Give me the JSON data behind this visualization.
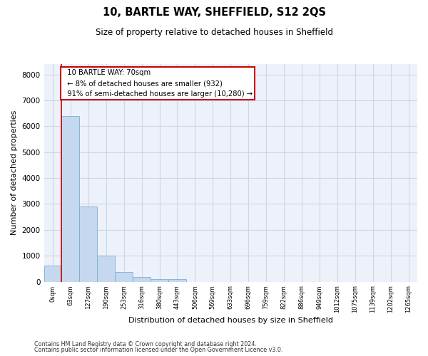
{
  "title1": "10, BARTLE WAY, SHEFFIELD, S12 2QS",
  "title2": "Size of property relative to detached houses in Sheffield",
  "xlabel": "Distribution of detached houses by size in Sheffield",
  "ylabel": "Number of detached properties",
  "bar_color": "#c5d8ef",
  "bar_edge_color": "#7aafd4",
  "grid_color": "#ccd6e8",
  "background_color": "#edf2fa",
  "vline_color": "#cc0000",
  "annotation_box_color": "#cc0000",
  "categories": [
    "0sqm",
    "63sqm",
    "127sqm",
    "190sqm",
    "253sqm",
    "316sqm",
    "380sqm",
    "443sqm",
    "506sqm",
    "569sqm",
    "633sqm",
    "696sqm",
    "759sqm",
    "822sqm",
    "886sqm",
    "949sqm",
    "1012sqm",
    "1075sqm",
    "1139sqm",
    "1202sqm",
    "1265sqm"
  ],
  "values": [
    620,
    6400,
    2900,
    1000,
    380,
    170,
    100,
    90,
    0,
    0,
    0,
    0,
    0,
    0,
    0,
    0,
    0,
    0,
    0,
    0,
    0
  ],
  "ylim": [
    0,
    8400
  ],
  "yticks": [
    0,
    1000,
    2000,
    3000,
    4000,
    5000,
    6000,
    7000,
    8000
  ],
  "annotation_text": "  10 BARTLE WAY: 70sqm\n  ← 8% of detached houses are smaller (932)\n  91% of semi-detached houses are larger (10,280) →",
  "footnote1": "Contains HM Land Registry data © Crown copyright and database right 2024.",
  "footnote2": "Contains public sector information licensed under the Open Government Licence v3.0."
}
